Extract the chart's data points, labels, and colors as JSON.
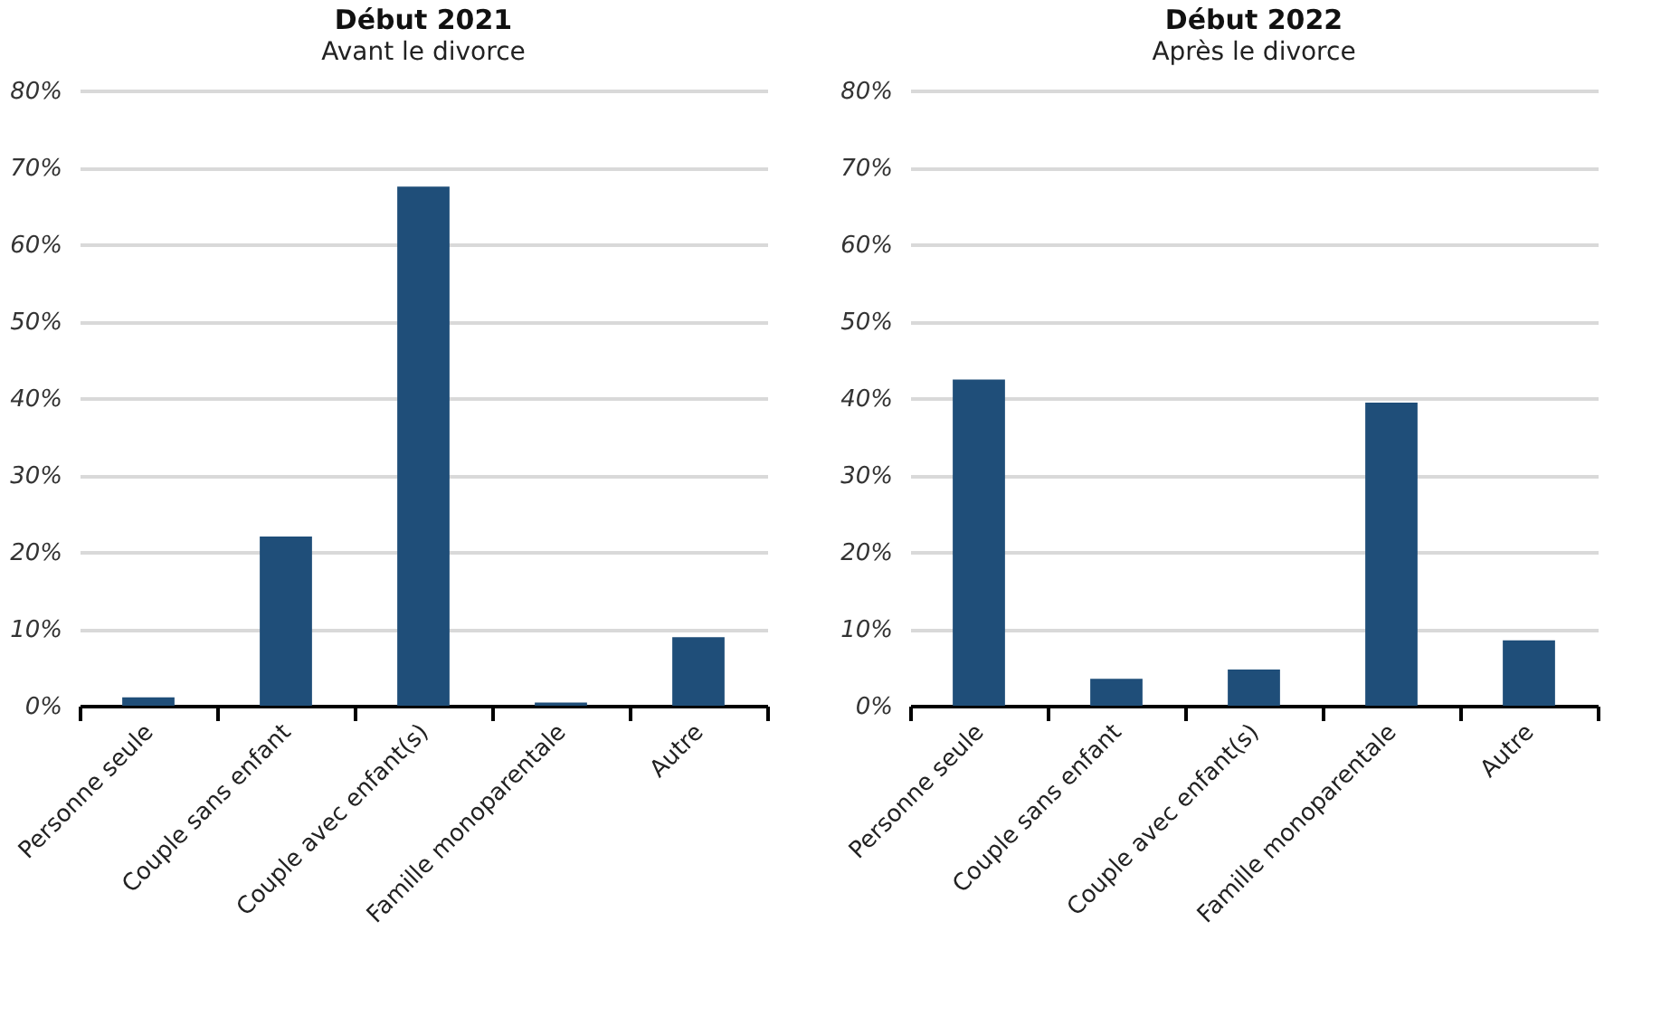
{
  "chart_data": [
    {
      "type": "bar",
      "title": "Début 2021",
      "subtitle": "Avant le divorce",
      "categories": [
        "Personne seule",
        "Couple sans enfant",
        "Couple avec enfant(s)",
        "Famille monoparentale",
        "Autre"
      ],
      "values": [
        1.1,
        22.0,
        67.5,
        0.4,
        8.9
      ],
      "color": "#1f4e79",
      "ylim": [
        0,
        80
      ],
      "yticks": [
        {
          "value": 0,
          "label": "0%"
        },
        {
          "value": 10,
          "label": "10%"
        },
        {
          "value": 20,
          "label": "20%"
        },
        {
          "value": 30,
          "label": "30%"
        },
        {
          "value": 40,
          "label": "40%"
        },
        {
          "value": 50,
          "label": "50%"
        },
        {
          "value": 60,
          "label": "60%"
        },
        {
          "value": 70,
          "label": "70%"
        },
        {
          "value": 80,
          "label": "80%"
        }
      ],
      "grid": "y"
    },
    {
      "type": "bar",
      "title": "Début 2022",
      "subtitle": "Après le divorce",
      "categories": [
        "Personne seule",
        "Couple sans enfant",
        "Couple avec enfant(s)",
        "Famille monoparentale",
        "Autre"
      ],
      "values": [
        42.4,
        3.5,
        4.7,
        39.4,
        8.5
      ],
      "color": "#1f4e79",
      "ylim": [
        0,
        80
      ],
      "yticks": [
        {
          "value": 0,
          "label": "0%"
        },
        {
          "value": 10,
          "label": "10%"
        },
        {
          "value": 20,
          "label": "20%"
        },
        {
          "value": 30,
          "label": "30%"
        },
        {
          "value": 40,
          "label": "40%"
        },
        {
          "value": 50,
          "label": "50%"
        },
        {
          "value": 60,
          "label": "60%"
        },
        {
          "value": 70,
          "label": "70%"
        },
        {
          "value": 80,
          "label": "80%"
        }
      ],
      "grid": "y"
    }
  ]
}
